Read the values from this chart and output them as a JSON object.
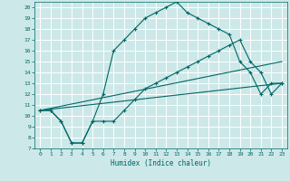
{
  "xlabel": "Humidex (Indice chaleur)",
  "bg_color": "#cde8e8",
  "grid_color": "#ffffff",
  "line_color": "#006666",
  "xlim": [
    -0.5,
    23.5
  ],
  "ylim": [
    7,
    20.5
  ],
  "xticks": [
    0,
    1,
    2,
    3,
    4,
    5,
    6,
    7,
    8,
    9,
    10,
    11,
    12,
    13,
    14,
    15,
    16,
    17,
    18,
    19,
    20,
    21,
    22,
    23
  ],
  "yticks": [
    7,
    8,
    9,
    10,
    11,
    12,
    13,
    14,
    15,
    16,
    17,
    18,
    19,
    20
  ],
  "line1_x": [
    0,
    1,
    2,
    3,
    4,
    5,
    6,
    7,
    8,
    9,
    10,
    11,
    12,
    13,
    14,
    15,
    16,
    17,
    18,
    19,
    20,
    21,
    22,
    23
  ],
  "line1_y": [
    10.5,
    10.5,
    9.5,
    7.5,
    7.5,
    9.5,
    12.0,
    16.0,
    17.0,
    18.0,
    19.0,
    19.5,
    20.0,
    20.5,
    19.5,
    19.0,
    18.5,
    18.0,
    17.5,
    15.0,
    14.0,
    12.0,
    13.0,
    13.0
  ],
  "line2_x": [
    0,
    1,
    2,
    3,
    4,
    5,
    6,
    7,
    8,
    9,
    10,
    11,
    12,
    13,
    14,
    15,
    16,
    17,
    18,
    19,
    20,
    21,
    22,
    23
  ],
  "line2_y": [
    10.5,
    10.5,
    9.5,
    7.5,
    7.5,
    9.5,
    9.5,
    9.5,
    10.5,
    11.5,
    12.5,
    13.0,
    13.5,
    14.0,
    14.5,
    15.0,
    15.5,
    16.0,
    16.5,
    17.0,
    15.0,
    14.0,
    12.0,
    13.0
  ],
  "line3_x": [
    0,
    23
  ],
  "line3_y": [
    10.5,
    13.0
  ],
  "line4_x": [
    0,
    23
  ],
  "line4_y": [
    10.5,
    15.0
  ]
}
